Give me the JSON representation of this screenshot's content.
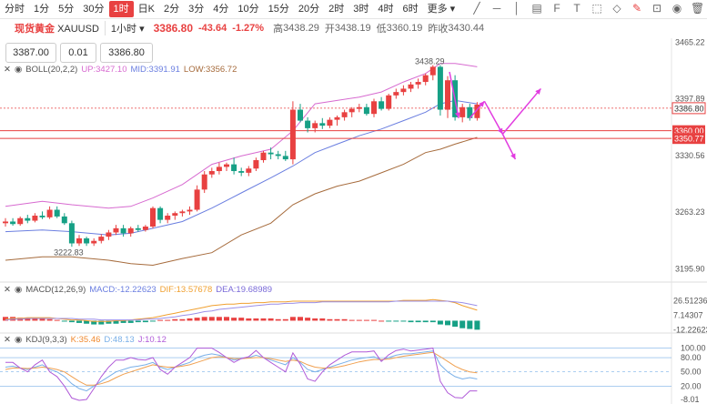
{
  "toolbar": {
    "timeframes": [
      "分时",
      "1分",
      "5分",
      "30分",
      "1时",
      "日K",
      "2分",
      "3分",
      "4分",
      "10分",
      "15分",
      "20分",
      "2时",
      "3时",
      "4时",
      "6时",
      "更多"
    ],
    "active_index": 4
  },
  "quote": {
    "symbol_label": "现货黄金",
    "symbol_code": "XAUUSD",
    "interval": "1小时",
    "price": "3386.80",
    "change": "-43.64",
    "change_pct": "-1.27%",
    "high_label": "高",
    "high": "3438.29",
    "open_label": "开",
    "open": "3438.19",
    "low_label": "低",
    "low": "3360.19",
    "prev_close_label": "昨收",
    "prev_close": "3430.44"
  },
  "order": {
    "sell_price": "3387.00",
    "quantity": "0.01",
    "buy_price": "3386.80"
  },
  "colors": {
    "up": "#e84141",
    "down": "#16a085",
    "boll_up": "#d76ad0",
    "boll_mid": "#6a7ee0",
    "boll_low": "#a66b3c",
    "arrow": "#e23ce0",
    "macd_dif": "#f0a030",
    "macd_dea": "#9b8fe8",
    "kdj_k": "#7ab0e8",
    "kdj_d": "#f0a050",
    "kdj_j": "#b05ad8"
  },
  "chart_data": {
    "type": "candlestick",
    "main": {
      "indicator": {
        "name": "BOLL(20,2,2)",
        "up_label": "UP:3427.10",
        "mid_label": "MID:3391.91",
        "low_label": "LOW:3356.72"
      },
      "ylim": [
        3180,
        3470
      ],
      "y_ticks": [
        3465.22,
        3397.89,
        3330.56,
        3263.23,
        3195.9
      ],
      "price_tags": [
        {
          "label": "3386.80",
          "value": 3386.8,
          "style": "current"
        },
        {
          "label": "3360.00",
          "value": 3360.0,
          "style": "line"
        },
        {
          "label": "3350.77",
          "value": 3350.77,
          "style": "line"
        }
      ],
      "annotations": [
        {
          "label": "3438.29",
          "value": 3438.29,
          "bar": 60
        },
        {
          "label": "3222.83",
          "value": 3222.83,
          "bar": 11
        }
      ],
      "candles": [
        [
          3250,
          3256,
          3246,
          3252
        ],
        [
          3252,
          3256,
          3247,
          3249
        ],
        [
          3249,
          3258,
          3247,
          3256
        ],
        [
          3256,
          3260,
          3250,
          3253
        ],
        [
          3253,
          3262,
          3251,
          3259
        ],
        [
          3259,
          3264,
          3255,
          3257
        ],
        [
          3257,
          3270,
          3255,
          3266
        ],
        [
          3266,
          3270,
          3256,
          3258
        ],
        [
          3258,
          3262,
          3248,
          3250
        ],
        [
          3250,
          3253,
          3222,
          3226
        ],
        [
          3226,
          3236,
          3223,
          3232
        ],
        [
          3232,
          3234,
          3223,
          3226
        ],
        [
          3226,
          3232,
          3223,
          3229
        ],
        [
          3229,
          3237,
          3226,
          3234
        ],
        [
          3234,
          3242,
          3230,
          3239
        ],
        [
          3239,
          3248,
          3236,
          3244
        ],
        [
          3244,
          3248,
          3234,
          3238
        ],
        [
          3238,
          3246,
          3234,
          3244
        ],
        [
          3244,
          3248,
          3240,
          3242
        ],
        [
          3242,
          3248,
          3240,
          3246
        ],
        [
          3246,
          3270,
          3244,
          3268
        ],
        [
          3268,
          3270,
          3250,
          3254
        ],
        [
          3254,
          3262,
          3250,
          3259
        ],
        [
          3259,
          3264,
          3254,
          3262
        ],
        [
          3262,
          3266,
          3258,
          3264
        ],
        [
          3264,
          3270,
          3260,
          3266
        ],
        [
          3266,
          3295,
          3264,
          3290
        ],
        [
          3290,
          3312,
          3286,
          3308
        ],
        [
          3308,
          3316,
          3304,
          3312
        ],
        [
          3312,
          3322,
          3308,
          3317
        ],
        [
          3317,
          3322,
          3312,
          3320
        ],
        [
          3320,
          3328,
          3308,
          3312
        ],
        [
          3312,
          3316,
          3306,
          3310
        ],
        [
          3310,
          3318,
          3306,
          3315
        ],
        [
          3315,
          3328,
          3312,
          3325
        ],
        [
          3325,
          3336,
          3322,
          3334
        ],
        [
          3334,
          3340,
          3326,
          3332
        ],
        [
          3332,
          3336,
          3326,
          3330
        ],
        [
          3330,
          3336,
          3324,
          3326
        ],
        [
          3326,
          3395,
          3320,
          3385
        ],
        [
          3385,
          3392,
          3370,
          3372
        ],
        [
          3372,
          3376,
          3358,
          3363
        ],
        [
          3363,
          3372,
          3358,
          3369
        ],
        [
          3369,
          3375,
          3362,
          3366
        ],
        [
          3366,
          3376,
          3363,
          3373
        ],
        [
          3373,
          3378,
          3366,
          3376
        ],
        [
          3376,
          3385,
          3372,
          3382
        ],
        [
          3382,
          3388,
          3376,
          3386
        ],
        [
          3386,
          3392,
          3382,
          3388
        ],
        [
          3388,
          3392,
          3378,
          3380
        ],
        [
          3380,
          3398,
          3376,
          3395
        ],
        [
          3395,
          3400,
          3384,
          3386
        ],
        [
          3386,
          3404,
          3384,
          3402
        ],
        [
          3402,
          3410,
          3398,
          3406
        ],
        [
          3406,
          3414,
          3402,
          3410
        ],
        [
          3410,
          3418,
          3406,
          3415
        ],
        [
          3415,
          3422,
          3410,
          3418
        ],
        [
          3418,
          3428,
          3414,
          3426
        ],
        [
          3426,
          3438,
          3420,
          3436
        ],
        [
          3436,
          3438,
          3378,
          3385
        ],
        [
          3385,
          3425,
          3375,
          3420
        ],
        [
          3420,
          3426,
          3372,
          3376
        ],
        [
          3376,
          3392,
          3370,
          3388
        ],
        [
          3388,
          3392,
          3372,
          3375
        ],
        [
          3375,
          3394,
          3372,
          3391
        ]
      ],
      "boll_up_points": [
        [
          0,
          3270
        ],
        [
          5,
          3276
        ],
        [
          9,
          3272
        ],
        [
          14,
          3268
        ],
        [
          17,
          3270
        ],
        [
          20,
          3280
        ],
        [
          24,
          3296
        ],
        [
          28,
          3320
        ],
        [
          32,
          3330
        ],
        [
          36,
          3338
        ],
        [
          39,
          3360
        ],
        [
          42,
          3392
        ],
        [
          45,
          3396
        ],
        [
          48,
          3400
        ],
        [
          51,
          3406
        ],
        [
          54,
          3418
        ],
        [
          57,
          3428
        ],
        [
          59,
          3440
        ],
        [
          61,
          3440
        ],
        [
          64,
          3436
        ]
      ],
      "boll_mid_points": [
        [
          0,
          3240
        ],
        [
          5,
          3242
        ],
        [
          9,
          3240
        ],
        [
          14,
          3236
        ],
        [
          17,
          3238
        ],
        [
          20,
          3244
        ],
        [
          24,
          3252
        ],
        [
          28,
          3268
        ],
        [
          32,
          3286
        ],
        [
          36,
          3304
        ],
        [
          39,
          3318
        ],
        [
          42,
          3334
        ],
        [
          45,
          3344
        ],
        [
          48,
          3354
        ],
        [
          51,
          3362
        ],
        [
          54,
          3372
        ],
        [
          57,
          3382
        ],
        [
          59,
          3392
        ],
        [
          61,
          3396
        ],
        [
          64,
          3392
        ]
      ],
      "boll_low_points": [
        [
          0,
          3206
        ],
        [
          5,
          3210
        ],
        [
          9,
          3210
        ],
        [
          14,
          3206
        ],
        [
          17,
          3202
        ],
        [
          20,
          3200
        ],
        [
          24,
          3208
        ],
        [
          28,
          3215
        ],
        [
          32,
          3236
        ],
        [
          36,
          3250
        ],
        [
          39,
          3272
        ],
        [
          42,
          3285
        ],
        [
          45,
          3294
        ],
        [
          48,
          3300
        ],
        [
          51,
          3310
        ],
        [
          54,
          3320
        ],
        [
          57,
          3334
        ],
        [
          59,
          3338
        ],
        [
          61,
          3344
        ],
        [
          64,
          3352
        ]
      ]
    },
    "macd": {
      "name": "MACD(12,26,9)",
      "macd_label": "MACD:-12.22623",
      "dif_label": "DIF:13.57678",
      "dea_label": "DEA:19.68989",
      "ylim": [
        -14,
        32
      ],
      "y_ticks": [
        26.51236,
        7.14307,
        -12.22623
      ],
      "histogram": [
        5,
        5,
        4,
        4,
        3,
        3,
        2,
        1,
        -1,
        -2,
        -3,
        -4,
        -5,
        -5,
        -4,
        -4,
        -3,
        -3,
        -2,
        -2,
        -1,
        1,
        1,
        2,
        2,
        3,
        4,
        5,
        5,
        5,
        5,
        4,
        4,
        3,
        3,
        3,
        3,
        2,
        2,
        5,
        5,
        4,
        3,
        3,
        2,
        2,
        2,
        1,
        1,
        1,
        1,
        0,
        -1,
        -1,
        -1,
        -2,
        -2,
        -2,
        -2,
        -5,
        -6,
        -8,
        -10,
        -11,
        -12
      ],
      "dif": [
        2,
        3,
        3,
        4,
        4,
        4,
        4,
        3,
        2,
        1,
        1,
        0,
        -1,
        -1,
        -1,
        0,
        0,
        1,
        2,
        3,
        4,
        6,
        8,
        10,
        12,
        14,
        16,
        18,
        20,
        21,
        22,
        22,
        23,
        23,
        24,
        24,
        25,
        25,
        25,
        26,
        26,
        26,
        26,
        26,
        26,
        26,
        26,
        26,
        26,
        26,
        26,
        26,
        26,
        26,
        27,
        27,
        27,
        27,
        28,
        27,
        26,
        24,
        20,
        17,
        14
      ],
      "dea": [
        1,
        2,
        2,
        3,
        3,
        3,
        3,
        3,
        3,
        3,
        2,
        2,
        2,
        1,
        1,
        1,
        1,
        1,
        1,
        2,
        2,
        3,
        4,
        5,
        7,
        8,
        10,
        12,
        13,
        15,
        16,
        17,
        18,
        19,
        20,
        21,
        22,
        22,
        23,
        23,
        24,
        24,
        24,
        25,
        25,
        25,
        25,
        25,
        25,
        25,
        25,
        25,
        25,
        26,
        26,
        26,
        26,
        26,
        26,
        26,
        26,
        25,
        24,
        22,
        20
      ]
    },
    "kdj": {
      "name": "KDJ(9,3,3)",
      "k_label": "K:35.46",
      "d_label": "D:48.13",
      "j_label": "J:10.12",
      "ylim": [
        -10,
        105
      ],
      "y_ticks": [
        100,
        80,
        50,
        20,
        -8.01
      ],
      "y_tick_labels": [
        "100.00",
        "80.00",
        "50.00",
        "20.00",
        "-8.01"
      ],
      "hlines": [
        100,
        80,
        50,
        20
      ],
      "k": [
        60,
        62,
        58,
        55,
        60,
        65,
        55,
        50,
        40,
        25,
        15,
        10,
        20,
        30,
        40,
        50,
        55,
        60,
        62,
        65,
        70,
        60,
        55,
        60,
        65,
        70,
        80,
        85,
        88,
        85,
        80,
        75,
        78,
        80,
        85,
        80,
        75,
        70,
        65,
        80,
        70,
        55,
        50,
        55,
        60,
        65,
        70,
        75,
        78,
        80,
        82,
        75,
        80,
        85,
        88,
        88,
        90,
        92,
        94,
        65,
        50,
        40,
        35,
        38,
        35
      ],
      "d": [
        55,
        58,
        58,
        57,
        58,
        60,
        58,
        55,
        50,
        40,
        30,
        22,
        22,
        25,
        30,
        38,
        45,
        50,
        55,
        60,
        65,
        62,
        60,
        60,
        62,
        65,
        70,
        75,
        80,
        82,
        80,
        78,
        78,
        79,
        80,
        80,
        78,
        75,
        72,
        75,
        72,
        65,
        60,
        58,
        58,
        60,
        63,
        67,
        71,
        74,
        76,
        76,
        77,
        80,
        83,
        85,
        87,
        89,
        91,
        82,
        72,
        62,
        55,
        50,
        48
      ],
      "j": [
        70,
        70,
        58,
        50,
        65,
        75,
        50,
        40,
        20,
        -5,
        -10,
        -8,
        15,
        40,
        60,
        75,
        75,
        80,
        76,
        75,
        80,
        55,
        45,
        60,
        70,
        80,
        100,
        100,
        100,
        91,
        80,
        70,
        78,
        82,
        95,
        80,
        70,
        60,
        50,
        90,
        66,
        35,
        30,
        50,
        65,
        75,
        85,
        92,
        92,
        92,
        94,
        72,
        86,
        95,
        98,
        94,
        96,
        98,
        100,
        30,
        6,
        -4,
        -5,
        10,
        10
      ]
    }
  }
}
